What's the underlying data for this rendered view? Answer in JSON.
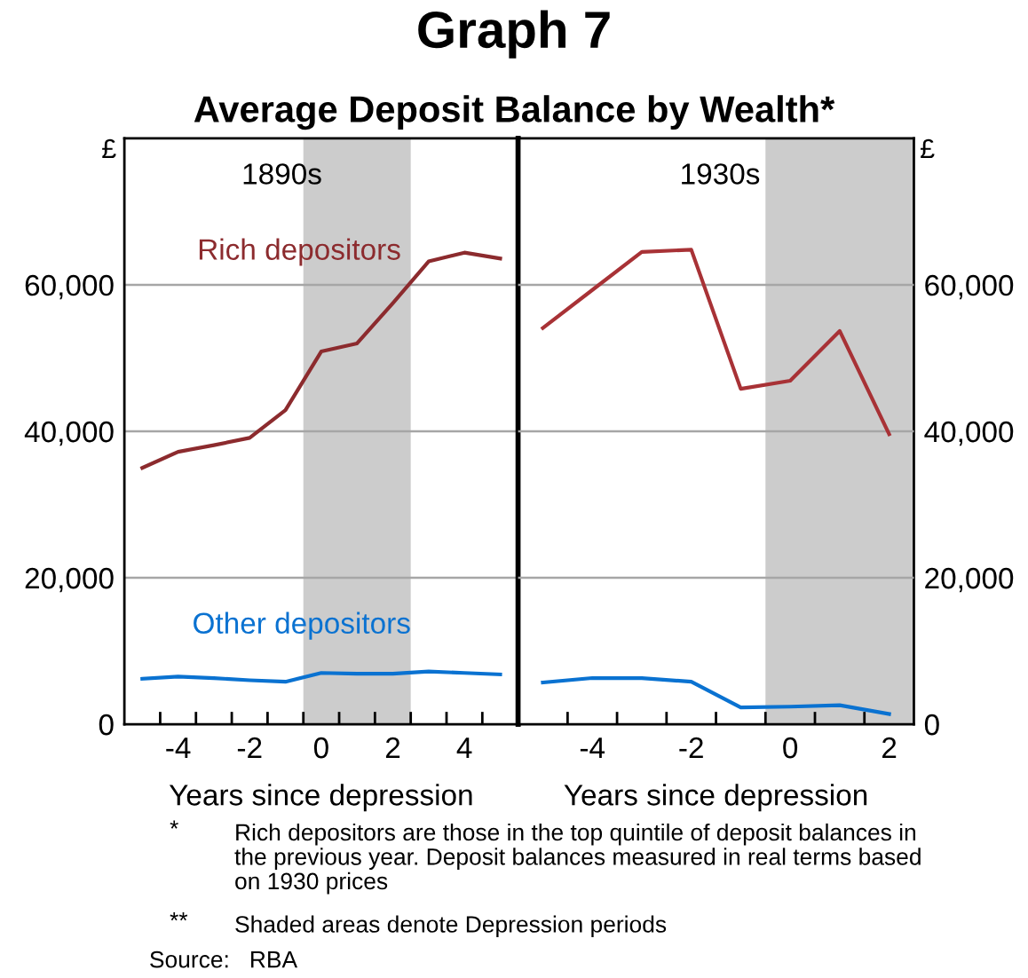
{
  "chart_data": [
    {
      "type": "line",
      "title": "Graph 7",
      "subtitle": "Average Deposit Balance by Wealth*",
      "xlabel": "Years since depression",
      "ylabel": "£",
      "x": [
        -5,
        -4,
        -3,
        -2,
        -1,
        0,
        1,
        2,
        3,
        4,
        5
      ],
      "series": [
        {
          "name": "Rich depositors",
          "color": "#8c2b2e",
          "values": [
            35000,
            37200,
            38100,
            39100,
            42900,
            50900,
            52000,
            57500,
            63200,
            64400,
            63600
          ]
        },
        {
          "name": "Other depositors",
          "color": "#0a72d1",
          "values": [
            6200,
            6500,
            6300,
            6000,
            5800,
            7000,
            6900,
            6900,
            7200,
            7000,
            6800
          ]
        }
      ],
      "xlim": [
        -5.5,
        5.5
      ],
      "xticks": [
        {
          "value": -4.5,
          "label": null
        },
        {
          "value": -4,
          "label": "-4"
        },
        {
          "value": -3.5,
          "label": null
        },
        {
          "value": -2.5,
          "label": null
        },
        {
          "value": -2,
          "label": "-2"
        },
        {
          "value": -1.5,
          "label": null
        },
        {
          "value": -0.5,
          "label": null
        },
        {
          "value": 0,
          "label": "0"
        },
        {
          "value": 0.5,
          "label": null
        },
        {
          "value": 1.5,
          "label": null
        },
        {
          "value": 2,
          "label": "2"
        },
        {
          "value": 2.5,
          "label": null
        },
        {
          "value": 3.5,
          "label": null
        },
        {
          "value": 4,
          "label": "4"
        },
        {
          "value": 4.5,
          "label": null
        }
      ],
      "ylim": [
        0,
        80000
      ],
      "yticks": [
        0,
        {
          "value": 20000,
          "label": "20,000"
        },
        {
          "value": 40000,
          "label": "40,000"
        },
        {
          "value": 60000,
          "label": "60,000"
        }
      ],
      "bands": [
        {
          "axis": "x",
          "from": -0.5,
          "to": 2.5,
          "color": "#cccccc"
        }
      ],
      "grid": "y",
      "legend": false,
      "annotations": [
        "1890s",
        "*",
        "Rich depositors are those in the top quintile of deposit balances in\nthe previous year. Deposit balances measured in real terms based\non 1930 prices",
        "**",
        "Shaded areas denote Depression periods",
        "Source:   RBA"
      ]
    },
    {
      "type": "line",
      "xlabel": "Years since depression",
      "y2label": "£",
      "x": [
        -5,
        -4,
        -3,
        -2,
        -1,
        0,
        1,
        2
      ],
      "series": [
        {
          "color": "#a83236",
          "axis": "y2",
          "values": [
            54100,
            59300,
            64500,
            64800,
            45800,
            46900,
            53700,
            39600
          ]
        },
        {
          "color": "#0a72d1",
          "axis": "y2",
          "values": [
            5700,
            6300,
            6300,
            5800,
            2300,
            2400,
            2600,
            1400
          ]
        }
      ],
      "xlim": [
        -5.5,
        2.5
      ],
      "xticks": [
        {
          "value": -4.5,
          "label": null
        },
        {
          "value": -4,
          "label": "-4"
        },
        {
          "value": -3.5,
          "label": null
        },
        {
          "value": -2.5,
          "label": null
        },
        {
          "value": -2,
          "label": "-2"
        },
        {
          "value": -1.5,
          "label": null
        },
        {
          "value": -0.5,
          "label": null
        },
        {
          "value": 0,
          "label": "0"
        },
        {
          "value": 0.5,
          "label": null
        },
        {
          "value": 1.5,
          "label": null
        },
        {
          "value": 2,
          "label": "2"
        }
      ],
      "y2lim": [
        0,
        80000
      ],
      "y2ticks": [
        0,
        {
          "value": 20000,
          "label": "20,000"
        },
        {
          "value": 40000,
          "label": "40,000"
        },
        {
          "value": 60000,
          "label": "60,000"
        }
      ],
      "bands": [
        {
          "axis": "x",
          "from": -0.5,
          "to": 2.5,
          "color": "#cccccc"
        }
      ],
      "grid": "y",
      "legend": false,
      "annotations": [
        "1930s"
      ]
    }
  ]
}
